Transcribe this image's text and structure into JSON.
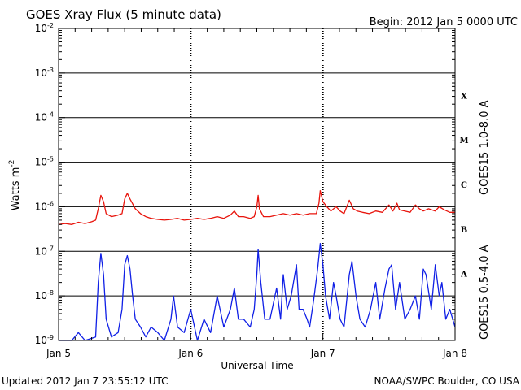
{
  "chart_data": {
    "type": "line",
    "title": "GOES Xray Flux (5 minute data)",
    "begin_label": "Begin:  2012 Jan 5 0000 UTC",
    "ylabel_base": "Watts m",
    "ylabel_exp": "-2",
    "xlabel": "Universal Time",
    "y_scale": "log",
    "ylim": [
      1e-09,
      0.01
    ],
    "y_ticks": [
      {
        "base": "10",
        "exp": "-2",
        "value": 0.01
      },
      {
        "base": "10",
        "exp": "-3",
        "value": 0.001
      },
      {
        "base": "10",
        "exp": "-4",
        "value": 0.0001
      },
      {
        "base": "10",
        "exp": "-5",
        "value": 1e-05
      },
      {
        "base": "10",
        "exp": "-6",
        "value": 1e-06
      },
      {
        "base": "10",
        "exp": "-7",
        "value": 1e-07
      },
      {
        "base": "10",
        "exp": "-8",
        "value": 1e-08
      },
      {
        "base": "10",
        "exp": "-9",
        "value": 1e-09
      }
    ],
    "x_unit": "days since 2012 Jan 5 0000 UTC",
    "xlim": [
      0,
      3
    ],
    "x_ticks": [
      {
        "label": "Jan 5",
        "value": 0
      },
      {
        "label": "Jan 6",
        "value": 1
      },
      {
        "label": "Jan 7",
        "value": 2
      },
      {
        "label": "Jan 8",
        "value": 3
      }
    ],
    "flare_classes": [
      {
        "label": "X",
        "value": 0.000316
      },
      {
        "label": "M",
        "value": 3.16e-05
      },
      {
        "label": "C",
        "value": 3.16e-06
      },
      {
        "label": "B",
        "value": 3.16e-07
      },
      {
        "label": "A",
        "value": 3.16e-08
      }
    ],
    "grid": true,
    "series": [
      {
        "name": "GOES15 1.0-8.0 A",
        "color": "#e8140c",
        "points": [
          [
            0.0,
            4e-07
          ],
          [
            0.05,
            4.2e-07
          ],
          [
            0.1,
            4e-07
          ],
          [
            0.15,
            4.5e-07
          ],
          [
            0.2,
            4.2e-07
          ],
          [
            0.25,
            4.6e-07
          ],
          [
            0.28,
            5e-07
          ],
          [
            0.3,
            9e-07
          ],
          [
            0.32,
            1.8e-06
          ],
          [
            0.34,
            1.3e-06
          ],
          [
            0.36,
            7e-07
          ],
          [
            0.4,
            6e-07
          ],
          [
            0.45,
            6.5e-07
          ],
          [
            0.48,
            7e-07
          ],
          [
            0.5,
            1.5e-06
          ],
          [
            0.52,
            2e-06
          ],
          [
            0.54,
            1.5e-06
          ],
          [
            0.58,
            9e-07
          ],
          [
            0.62,
            7e-07
          ],
          [
            0.66,
            6e-07
          ],
          [
            0.7,
            5.5e-07
          ],
          [
            0.75,
            5.2e-07
          ],
          [
            0.8,
            5e-07
          ],
          [
            0.85,
            5.2e-07
          ],
          [
            0.9,
            5.5e-07
          ],
          [
            0.95,
            5e-07
          ],
          [
            1.0,
            5.2e-07
          ],
          [
            1.05,
            5.5e-07
          ],
          [
            1.1,
            5.2e-07
          ],
          [
            1.15,
            5.5e-07
          ],
          [
            1.2,
            6e-07
          ],
          [
            1.25,
            5.5e-07
          ],
          [
            1.3,
            6.5e-07
          ],
          [
            1.33,
            8e-07
          ],
          [
            1.36,
            6e-07
          ],
          [
            1.4,
            6e-07
          ],
          [
            1.45,
            5.5e-07
          ],
          [
            1.48,
            6e-07
          ],
          [
            1.5,
            1e-06
          ],
          [
            1.51,
            1.8e-06
          ],
          [
            1.52,
            9e-07
          ],
          [
            1.55,
            6e-07
          ],
          [
            1.6,
            6e-07
          ],
          [
            1.65,
            6.5e-07
          ],
          [
            1.7,
            7e-07
          ],
          [
            1.75,
            6.5e-07
          ],
          [
            1.8,
            7e-07
          ],
          [
            1.85,
            6.5e-07
          ],
          [
            1.9,
            7e-07
          ],
          [
            1.95,
            7e-07
          ],
          [
            1.97,
            1.2e-06
          ],
          [
            1.98,
            2.3e-06
          ],
          [
            2.0,
            1.3e-06
          ],
          [
            2.03,
            1e-06
          ],
          [
            2.06,
            8e-07
          ],
          [
            2.1,
            1e-06
          ],
          [
            2.13,
            8e-07
          ],
          [
            2.16,
            7e-07
          ],
          [
            2.2,
            1.4e-06
          ],
          [
            2.23,
            9e-07
          ],
          [
            2.26,
            8e-07
          ],
          [
            2.3,
            7.5e-07
          ],
          [
            2.35,
            7e-07
          ],
          [
            2.4,
            8e-07
          ],
          [
            2.45,
            7.5e-07
          ],
          [
            2.5,
            1.1e-06
          ],
          [
            2.53,
            8e-07
          ],
          [
            2.56,
            1.2e-06
          ],
          [
            2.58,
            8.5e-07
          ],
          [
            2.62,
            8e-07
          ],
          [
            2.66,
            7.5e-07
          ],
          [
            2.7,
            1.1e-06
          ],
          [
            2.73,
            9e-07
          ],
          [
            2.76,
            8e-07
          ],
          [
            2.8,
            9e-07
          ],
          [
            2.85,
            8e-07
          ],
          [
            2.88,
            1e-06
          ],
          [
            2.92,
            8.5e-07
          ],
          [
            2.96,
            7.5e-07
          ],
          [
            3.0,
            7.5e-07
          ]
        ]
      },
      {
        "name": "GOES15 0.5-4.0 A",
        "color": "#1020e6",
        "points": [
          [
            0.0,
            1e-09
          ],
          [
            0.1,
            1e-09
          ],
          [
            0.15,
            1.5e-09
          ],
          [
            0.2,
            1e-09
          ],
          [
            0.28,
            1.2e-09
          ],
          [
            0.3,
            2e-08
          ],
          [
            0.32,
            9e-08
          ],
          [
            0.34,
            3e-08
          ],
          [
            0.36,
            3e-09
          ],
          [
            0.4,
            1.2e-09
          ],
          [
            0.45,
            1.5e-09
          ],
          [
            0.48,
            5e-09
          ],
          [
            0.5,
            5e-08
          ],
          [
            0.52,
            8e-08
          ],
          [
            0.54,
            4e-08
          ],
          [
            0.56,
            1e-08
          ],
          [
            0.58,
            3e-09
          ],
          [
            0.62,
            2e-09
          ],
          [
            0.66,
            1.2e-09
          ],
          [
            0.7,
            2e-09
          ],
          [
            0.75,
            1.5e-09
          ],
          [
            0.8,
            1e-09
          ],
          [
            0.85,
            3e-09
          ],
          [
            0.87,
            1e-08
          ],
          [
            0.9,
            2e-09
          ],
          [
            0.95,
            1.5e-09
          ],
          [
            1.0,
            5e-09
          ],
          [
            1.05,
            1e-09
          ],
          [
            1.1,
            3e-09
          ],
          [
            1.15,
            1.5e-09
          ],
          [
            1.2,
            1e-08
          ],
          [
            1.25,
            2e-09
          ],
          [
            1.3,
            5e-09
          ],
          [
            1.33,
            1.5e-08
          ],
          [
            1.36,
            3e-09
          ],
          [
            1.4,
            3e-09
          ],
          [
            1.45,
            2e-09
          ],
          [
            1.48,
            5e-09
          ],
          [
            1.5,
            3e-08
          ],
          [
            1.51,
            1.1e-07
          ],
          [
            1.53,
            2e-08
          ],
          [
            1.56,
            3e-09
          ],
          [
            1.6,
            3e-09
          ],
          [
            1.65,
            1.5e-08
          ],
          [
            1.68,
            3e-09
          ],
          [
            1.7,
            3e-08
          ],
          [
            1.73,
            5e-09
          ],
          [
            1.76,
            1e-08
          ],
          [
            1.8,
            5e-08
          ],
          [
            1.82,
            5e-09
          ],
          [
            1.85,
            5e-09
          ],
          [
            1.88,
            3e-09
          ],
          [
            1.9,
            2e-09
          ],
          [
            1.93,
            8e-09
          ],
          [
            1.96,
            4e-08
          ],
          [
            1.98,
            1.5e-07
          ],
          [
            2.0,
            5e-08
          ],
          [
            2.02,
            1e-08
          ],
          [
            2.05,
            3e-09
          ],
          [
            2.08,
            2e-08
          ],
          [
            2.1,
            1e-08
          ],
          [
            2.13,
            3e-09
          ],
          [
            2.16,
            2e-09
          ],
          [
            2.2,
            3e-08
          ],
          [
            2.22,
            6e-08
          ],
          [
            2.25,
            1e-08
          ],
          [
            2.28,
            3e-09
          ],
          [
            2.32,
            2e-09
          ],
          [
            2.36,
            5e-09
          ],
          [
            2.4,
            2e-08
          ],
          [
            2.43,
            3e-09
          ],
          [
            2.47,
            1.5e-08
          ],
          [
            2.5,
            4e-08
          ],
          [
            2.52,
            5e-08
          ],
          [
            2.55,
            5e-09
          ],
          [
            2.58,
            2e-08
          ],
          [
            2.62,
            3e-09
          ],
          [
            2.66,
            5e-09
          ],
          [
            2.7,
            1e-08
          ],
          [
            2.73,
            3e-09
          ],
          [
            2.76,
            4e-08
          ],
          [
            2.78,
            3e-08
          ],
          [
            2.82,
            5e-09
          ],
          [
            2.85,
            5e-08
          ],
          [
            2.88,
            1e-08
          ],
          [
            2.9,
            2e-08
          ],
          [
            2.93,
            3e-09
          ],
          [
            2.96,
            5e-09
          ],
          [
            3.0,
            2e-09
          ]
        ]
      }
    ]
  },
  "footer": {
    "updated": "Updated 2012 Jan  7 23:55:12 UTC",
    "credit": "NOAA/SWPC Boulder, CO USA"
  }
}
